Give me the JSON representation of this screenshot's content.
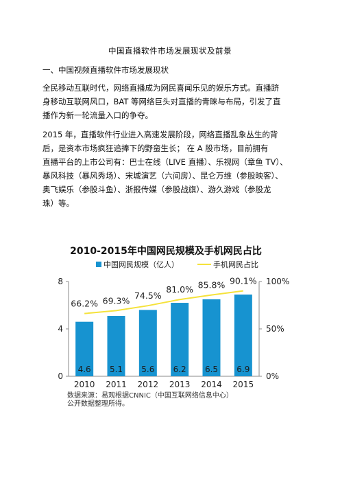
{
  "title": "中国直播软件市场发展现状及前景",
  "section_heading": "一、中国视频直播软件市场发展现状",
  "paragraph1_lines": [
    "全民移动互联时代，网络直播成为网民喜闻乐见的娱乐方式。直播跻",
    "身移动互联网风口，BAT 等网络巨头对直播的青睐与布局，引发了直",
    "播作为新一轮流量入口的争夺。"
  ],
  "paragraph2_lines": [
    "2015 年，直播软件行业进入高速发展阶段，网络直播乱象丛生的背",
    "后，是资本市场疯狂追捧下的野蛮生长；    在 A 股市场，目前拥有",
    "直播平台的上市公司有：巴士在线（LIVE 直播）、乐视网（章鱼 TV）、",
    "暴风科技（暴风秀场）、宋城演艺（六间房）、昆仑万维（参股映客）、",
    "奥飞娱乐（参股斗鱼）、浙报传媒（参股战旗）、游久游戏（参股龙",
    "珠）等。"
  ],
  "chart_data": {
    "type": "bar",
    "title": "2010-2015年中国网民规模及手机网民占比",
    "categories": [
      "2010",
      "2011",
      "2012",
      "2013",
      "2014",
      "2015"
    ],
    "series": [
      {
        "name": "中国网民规模（亿人）",
        "type": "bar",
        "axis": "left",
        "values": [
          4.6,
          5.1,
          5.6,
          6.2,
          6.5,
          6.9
        ],
        "labels": [
          "4.6",
          "5.1",
          "5.6",
          "6.2",
          "6.5",
          "6.9"
        ]
      },
      {
        "name": "手机网民占比",
        "type": "line",
        "axis": "right",
        "values": [
          66.2,
          69.3,
          74.5,
          81.0,
          85.8,
          90.1
        ],
        "labels": [
          "66.2%",
          "69.3%",
          "74.5%",
          "81.0%",
          "85.8%",
          "90.1%"
        ]
      }
    ],
    "ylim": [
      0,
      8
    ],
    "y_ticks": [
      "0",
      "4",
      "8"
    ],
    "y2lim": [
      0,
      100
    ],
    "y2_ticks": [
      "0%",
      "50%",
      "100%"
    ],
    "legend_placement": "top",
    "grid": false,
    "source_lines": [
      "数据来源：易观根据CNNIC（中国互联网络信息中心）",
      "公开数据整理所得。"
    ],
    "colors": {
      "bar": "#1793d0",
      "line": "#f5e23b"
    }
  }
}
